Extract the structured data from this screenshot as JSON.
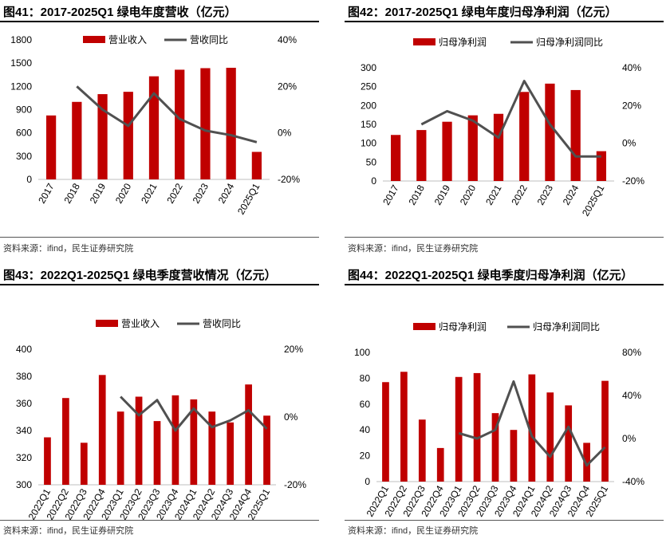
{
  "colors": {
    "bar": "#c00000",
    "line": "#505050"
  },
  "chart_data": [
    {
      "type": "bar+line",
      "title": "图41：2017-2025Q1 绿电年度营收（亿元）",
      "source": "资料来源：ifind，民生证券研究院",
      "categories": [
        "2017",
        "2018",
        "2019",
        "2020",
        "2021",
        "2022",
        "2023",
        "2024",
        "2025Q1"
      ],
      "series": [
        {
          "name": "营业收入",
          "type": "bar",
          "axis": "left",
          "values": [
            825,
            1000,
            1100,
            1130,
            1330,
            1415,
            1435,
            1440,
            355
          ]
        },
        {
          "name": "营收同比",
          "type": "line",
          "axis": "right",
          "values": [
            null,
            20,
            10,
            3,
            17,
            6,
            1,
            -1,
            -4
          ]
        }
      ],
      "left_axis": {
        "ylim": [
          0,
          1800
        ],
        "ticks": [
          "0",
          "300",
          "600",
          "900",
          "1200",
          "1500",
          "1800"
        ]
      },
      "right_axis": {
        "ylim": [
          -20,
          40
        ],
        "ticks": [
          "-20%",
          "0%",
          "20%",
          "40%"
        ]
      },
      "legend": "top"
    },
    {
      "type": "bar+line",
      "title": "图42：2017-2025Q1 绿电年度归母净利润（亿元）",
      "source": "资料来源：ifind，民生证券研究院",
      "categories": [
        "2017",
        "2018",
        "2019",
        "2020",
        "2021",
        "2022",
        "2023",
        "2024",
        "2025Q1"
      ],
      "series": [
        {
          "name": "归母净利润",
          "type": "bar",
          "axis": "left",
          "values": [
            122,
            135,
            157,
            174,
            178,
            236,
            258,
            241,
            79
          ]
        },
        {
          "name": "归母净利润同比",
          "type": "line",
          "axis": "right",
          "values": [
            null,
            10,
            17,
            12,
            3,
            33,
            10,
            -7,
            -7
          ]
        }
      ],
      "left_axis": {
        "ylim": [
          0,
          300
        ],
        "ticks": [
          "0",
          "50",
          "100",
          "150",
          "200",
          "250",
          "300"
        ]
      },
      "right_axis": {
        "ylim": [
          -20,
          40
        ],
        "ticks": [
          "-20%",
          "0%",
          "20%",
          "40%"
        ]
      },
      "legend": "top"
    },
    {
      "type": "bar+line",
      "title": "图43：2022Q1-2025Q1 绿电季度营收情况（亿元）",
      "source": "资料来源：ifind，民生证券研究院",
      "categories": [
        "2022Q1",
        "2022Q2",
        "2022Q3",
        "2022Q4",
        "2023Q1",
        "2023Q2",
        "2023Q3",
        "2023Q4",
        "2024Q1",
        "2024Q2",
        "2024Q3",
        "2024Q4",
        "2025Q1"
      ],
      "series": [
        {
          "name": "营业收入",
          "type": "bar",
          "axis": "left",
          "values": [
            335,
            364,
            331,
            381,
            354,
            365,
            347,
            366,
            363,
            354,
            346,
            374,
            351
          ]
        },
        {
          "name": "营收同比",
          "type": "line",
          "axis": "right",
          "values": [
            null,
            null,
            null,
            null,
            6,
            0.5,
            5,
            -4,
            2.5,
            -3,
            -1,
            2,
            -3.5
          ]
        }
      ],
      "left_axis": {
        "ylim": [
          300,
          400
        ],
        "ticks": [
          "300",
          "320",
          "340",
          "360",
          "380",
          "400"
        ]
      },
      "right_axis": {
        "ylim": [
          -20,
          20
        ],
        "ticks": [
          "-20%",
          "0%",
          "20%"
        ]
      },
      "legend": "top"
    },
    {
      "type": "bar+line",
      "title": "图44：2022Q1-2025Q1 绿电季度归母净利润（亿元）",
      "source": "资料来源：ifind，民生证券研究院",
      "categories": [
        "2022Q1",
        "2022Q2",
        "2022Q3",
        "2022Q4",
        "2023Q1",
        "2023Q2",
        "2023Q3",
        "2023Q4",
        "2024Q1",
        "2024Q2",
        "2024Q3",
        "2024Q4",
        "2025Q1"
      ],
      "series": [
        {
          "name": "归母净利润",
          "type": "bar",
          "axis": "left",
          "values": [
            77,
            85,
            48,
            26,
            81,
            84,
            53,
            40,
            83,
            69,
            59,
            30,
            78
          ]
        },
        {
          "name": "归母净利润同比",
          "type": "line",
          "axis": "right",
          "values": [
            null,
            null,
            null,
            null,
            5,
            0,
            8,
            53,
            2,
            -17,
            11,
            -25,
            -8
          ]
        }
      ],
      "left_axis": {
        "ylim": [
          0,
          100
        ],
        "ticks": [
          "0",
          "20",
          "40",
          "60",
          "80",
          "100"
        ]
      },
      "right_axis": {
        "ylim": [
          -40,
          80
        ],
        "ticks": [
          "-40%",
          "0%",
          "40%",
          "80%"
        ]
      },
      "legend": "top"
    }
  ]
}
